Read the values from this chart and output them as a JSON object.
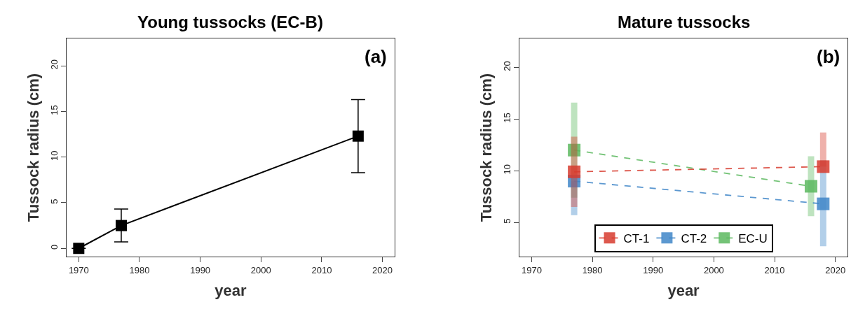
{
  "chart_data": [
    {
      "type": "line",
      "title": "Young tussocks (EC-B)",
      "xlabel": "year",
      "ylabel": "Tussock radius (cm)",
      "annotations": [
        "(a)"
      ],
      "series": [
        {
          "color": "#000000",
          "x": [
            1970,
            1977,
            2016
          ],
          "values": [
            0,
            2.5,
            12.3
          ],
          "errors": [
            null,
            [
              0.7,
              4.3
            ],
            [
              8.3,
              16.3
            ]
          ]
        }
      ],
      "xlim": [
        1968,
        2022
      ],
      "xticks": [
        1970,
        1980,
        1990,
        2000,
        2010,
        2020
      ],
      "ylim": [
        -0.9,
        23
      ],
      "yticks": [
        0,
        5,
        10,
        15,
        20
      ],
      "legend": false,
      "marker": "square",
      "line_style": "solid"
    },
    {
      "type": "line",
      "title": "Mature tussocks",
      "xlabel": "year",
      "ylabel": "Tussock radius (cm)",
      "annotations": [
        "(b)"
      ],
      "series": [
        {
          "name": "CT-1",
          "color": "#d73b2e",
          "x": [
            1977,
            2018
          ],
          "values": [
            9.9,
            10.4
          ],
          "errors": [
            [
              6.5,
              13.3
            ],
            [
              10.4,
              13.7
            ]
          ]
        },
        {
          "name": "CT-2",
          "color": "#3f86c8",
          "x": [
            1977,
            2018
          ],
          "values": [
            9.0,
            6.8
          ],
          "errors": [
            [
              5.7,
              9.0
            ],
            [
              2.7,
              11.0
            ]
          ]
        },
        {
          "name": "EC-U",
          "color": "#5cb85f",
          "x": [
            1977,
            2016
          ],
          "values": [
            12.0,
            8.5
          ],
          "errors": [
            [
              7.4,
              16.6
            ],
            [
              5.6,
              11.4
            ]
          ]
        }
      ],
      "xlim": [
        1968,
        2022
      ],
      "xticks": [
        1970,
        1980,
        1990,
        2000,
        2010,
        2020
      ],
      "ylim": [
        1.7,
        22.8
      ],
      "yticks": [
        5,
        10,
        15,
        20
      ],
      "legend": "bottom",
      "marker": "square",
      "line_style": "dashed"
    }
  ]
}
